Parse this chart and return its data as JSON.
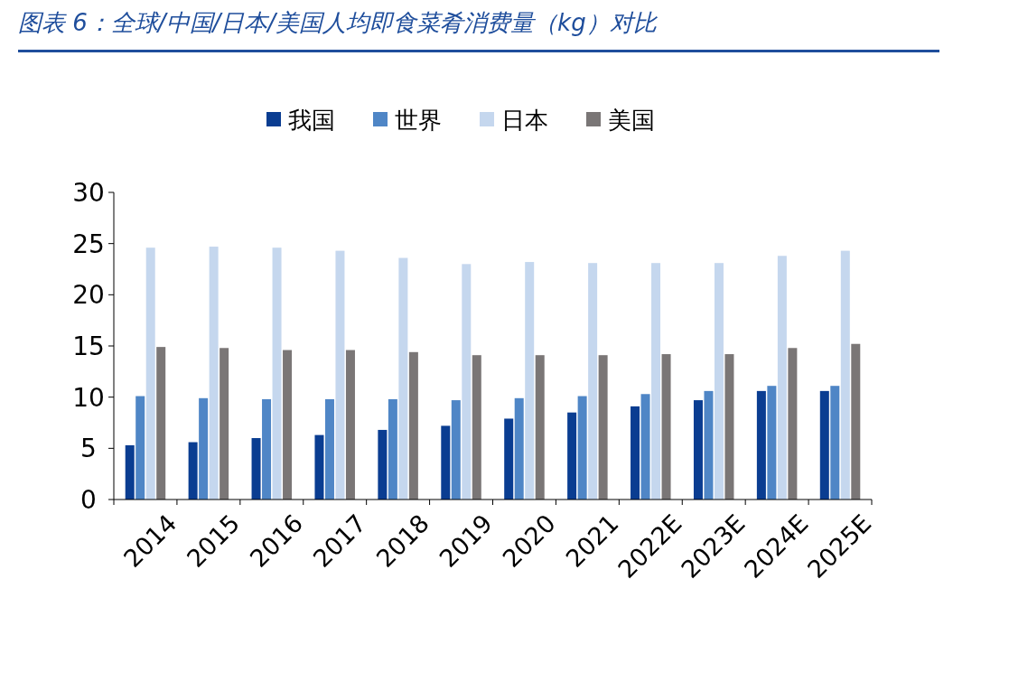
{
  "chart_data": {
    "type": "bar",
    "title": "图表 6：全球/中国/日本/美国人均即食菜肴消费量（kg）对比",
    "categories": [
      "2014",
      "2015",
      "2016",
      "2017",
      "2018",
      "2019",
      "2020",
      "2021",
      "2022E",
      "2023E",
      "2024E",
      "2025E"
    ],
    "series": [
      {
        "name": "我国",
        "color": "#0a3d91",
        "values": [
          5.3,
          5.6,
          6.0,
          6.3,
          6.8,
          7.2,
          7.9,
          8.5,
          9.1,
          9.7,
          10.6,
          10.6
        ]
      },
      {
        "name": "世界",
        "color": "#4f86c6",
        "values": [
          10.1,
          9.9,
          9.8,
          9.8,
          9.8,
          9.7,
          9.9,
          10.1,
          10.3,
          10.6,
          11.1,
          11.1
        ]
      },
      {
        "name": "日本",
        "color": "#c5d7ee",
        "values": [
          24.6,
          24.7,
          24.6,
          24.3,
          23.6,
          23.0,
          23.2,
          23.1,
          23.1,
          23.1,
          23.8,
          24.3
        ]
      },
      {
        "name": "美国",
        "color": "#7a7676",
        "values": [
          14.9,
          14.8,
          14.6,
          14.6,
          14.4,
          14.1,
          14.1,
          14.1,
          14.2,
          14.2,
          14.8,
          15.2
        ]
      }
    ],
    "ylim": [
      0,
      30
    ],
    "yticks": [
      0,
      5,
      10,
      15,
      20,
      25,
      30
    ],
    "grid": false,
    "legend": "top"
  }
}
